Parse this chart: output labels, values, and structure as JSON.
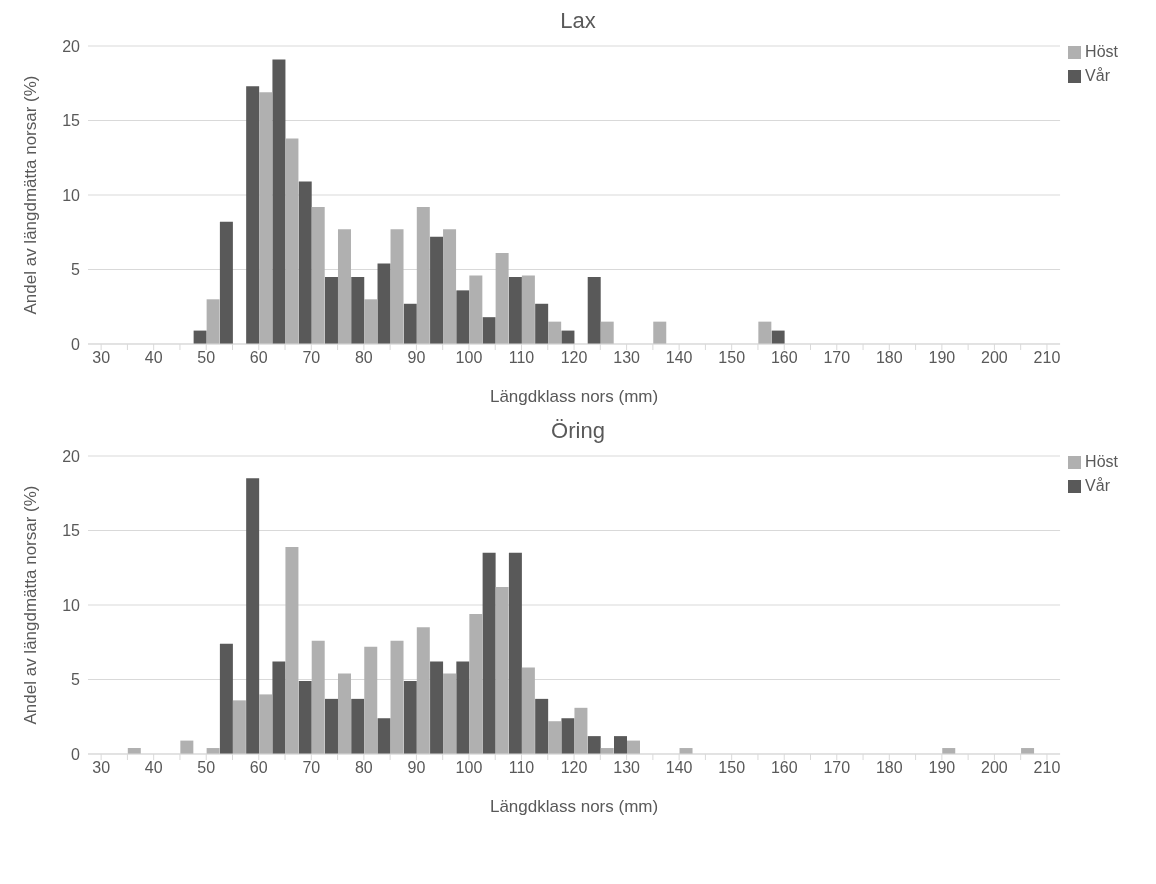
{
  "chart_data": [
    {
      "type": "bar",
      "title": "Lax",
      "xlabel": "Längdklass nors (mm)",
      "ylabel": "Andel av längdmätta norsar (%)",
      "categories": [
        "30",
        null,
        "40",
        null,
        "50",
        null,
        "60",
        null,
        "70",
        null,
        "80",
        null,
        "90",
        null,
        "100",
        null,
        "110",
        null,
        "120",
        null,
        "130",
        null,
        "140",
        null,
        "150",
        null,
        "160",
        null,
        "170",
        null,
        "180",
        null,
        "190",
        null,
        "200",
        null,
        "210"
      ],
      "series": [
        {
          "name": "Vår",
          "color": "#595959",
          "values": [
            null,
            null,
            null,
            null,
            0.9,
            8.2,
            17.3,
            19.1,
            10.9,
            4.5,
            4.5,
            5.4,
            2.7,
            7.2,
            3.6,
            1.8,
            4.5,
            2.7,
            0.9,
            4.5,
            null,
            null,
            null,
            null,
            null,
            null,
            0.9,
            null,
            null,
            null,
            null,
            null,
            null,
            null,
            null,
            null,
            null
          ]
        },
        {
          "name": "Höst",
          "color": "#b0b0b0",
          "values": [
            null,
            null,
            null,
            null,
            3.0,
            null,
            16.9,
            13.8,
            9.2,
            7.7,
            3.0,
            7.7,
            9.2,
            7.7,
            4.6,
            6.1,
            4.6,
            1.5,
            null,
            1.5,
            null,
            1.5,
            null,
            null,
            null,
            1.5,
            null,
            null,
            null,
            null,
            null,
            null,
            null,
            null,
            null,
            null,
            null
          ]
        }
      ],
      "ylim": [
        0,
        20
      ],
      "yticks": [
        0,
        5,
        10,
        15,
        20
      ],
      "grid": "y",
      "legend": "top right"
    },
    {
      "type": "bar",
      "title": "Öring",
      "xlabel": "Längdklass nors (mm)",
      "ylabel": "Andel av längdmätta norsar (%)",
      "categories": [
        "30",
        null,
        "40",
        null,
        "50",
        null,
        "60",
        null,
        "70",
        null,
        "80",
        null,
        "90",
        null,
        "100",
        null,
        "110",
        null,
        "120",
        null,
        "130",
        null,
        "140",
        null,
        "150",
        null,
        "160",
        null,
        "170",
        null,
        "180",
        null,
        "190",
        null,
        "200",
        null,
        "210"
      ],
      "series": [
        {
          "name": "Vår",
          "color": "#595959",
          "values": [
            null,
            null,
            null,
            null,
            null,
            7.4,
            18.5,
            6.2,
            4.9,
            3.7,
            3.7,
            2.4,
            4.9,
            6.2,
            6.2,
            13.5,
            13.5,
            3.7,
            2.4,
            1.2,
            1.2,
            null,
            null,
            null,
            null,
            null,
            null,
            null,
            null,
            null,
            null,
            null,
            null,
            null,
            null,
            null,
            null
          ]
        },
        {
          "name": "Höst",
          "color": "#b0b0b0",
          "values": [
            null,
            0.4,
            null,
            0.9,
            0.4,
            3.6,
            4.0,
            13.9,
            7.6,
            5.4,
            7.2,
            7.6,
            8.5,
            5.4,
            9.4,
            11.2,
            5.8,
            2.2,
            3.1,
            0.4,
            0.9,
            null,
            0.4,
            null,
            null,
            null,
            null,
            null,
            null,
            null,
            null,
            null,
            0.4,
            null,
            null,
            0.4,
            null
          ]
        }
      ],
      "ylim": [
        0,
        20
      ],
      "yticks": [
        0,
        5,
        10,
        15,
        20
      ],
      "grid": "y",
      "legend": "top right"
    }
  ]
}
